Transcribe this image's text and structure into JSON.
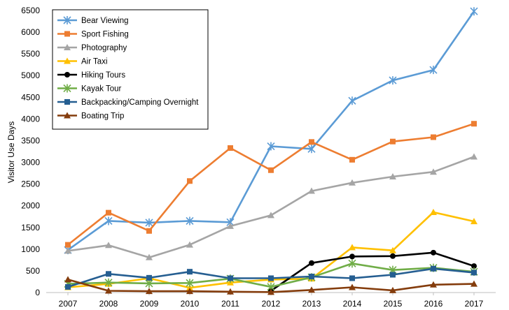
{
  "chart_data": {
    "type": "line",
    "xlabel": "",
    "ylabel": "Visitor Use Days",
    "ylim": [
      0,
      6500
    ],
    "ytick_step": 500,
    "grid": false,
    "legend_position": "top-left",
    "categories": [
      "2007",
      "2008",
      "2009",
      "2010",
      "2011",
      "2012",
      "2013",
      "2014",
      "2015",
      "2016",
      "2017"
    ],
    "yticks": [
      "0",
      "500",
      "1000",
      "1500",
      "2000",
      "2500",
      "3000",
      "3500",
      "4000",
      "4500",
      "5000",
      "5500",
      "6000",
      "6500"
    ],
    "series": [
      {
        "name": "Bear Viewing",
        "color": "#5b9bd5",
        "marker": "star",
        "values": [
          980,
          1650,
          1610,
          1650,
          1620,
          3370,
          3310,
          4420,
          4890,
          5130,
          6480
        ]
      },
      {
        "name": "Sport Fishing",
        "color": "#ed7d31",
        "marker": "square",
        "values": [
          1100,
          1840,
          1420,
          2570,
          3330,
          2820,
          3470,
          3060,
          3480,
          3580,
          3890
        ]
      },
      {
        "name": "Photography",
        "color": "#a5a5a5",
        "marker": "triangle",
        "values": [
          960,
          1090,
          810,
          1100,
          1530,
          1780,
          2340,
          2530,
          2670,
          2780,
          3130
        ]
      },
      {
        "name": "Air Taxi",
        "color": "#ffc000",
        "marker": "triangle",
        "values": [
          120,
          200,
          330,
          110,
          230,
          300,
          320,
          1040,
          970,
          1850,
          1640
        ]
      },
      {
        "name": "Hiking Tours",
        "color": "#000000",
        "marker": "circle",
        "values": [
          null,
          null,
          null,
          null,
          null,
          40,
          680,
          830,
          840,
          920,
          610
        ]
      },
      {
        "name": "Kayak Tour",
        "color": "#70ad47",
        "marker": "star",
        "values": [
          200,
          230,
          210,
          220,
          320,
          130,
          350,
          670,
          520,
          570,
          480
        ]
      },
      {
        "name": "Backpacking/Camping Overnight",
        "color": "#255e91",
        "marker": "square",
        "values": [
          130,
          430,
          340,
          480,
          330,
          330,
          370,
          330,
          410,
          550,
          460
        ]
      },
      {
        "name": "Boating Trip",
        "color": "#843c0c",
        "marker": "triangle",
        "values": [
          300,
          40,
          30,
          30,
          20,
          10,
          60,
          120,
          50,
          180,
          200
        ]
      }
    ]
  }
}
